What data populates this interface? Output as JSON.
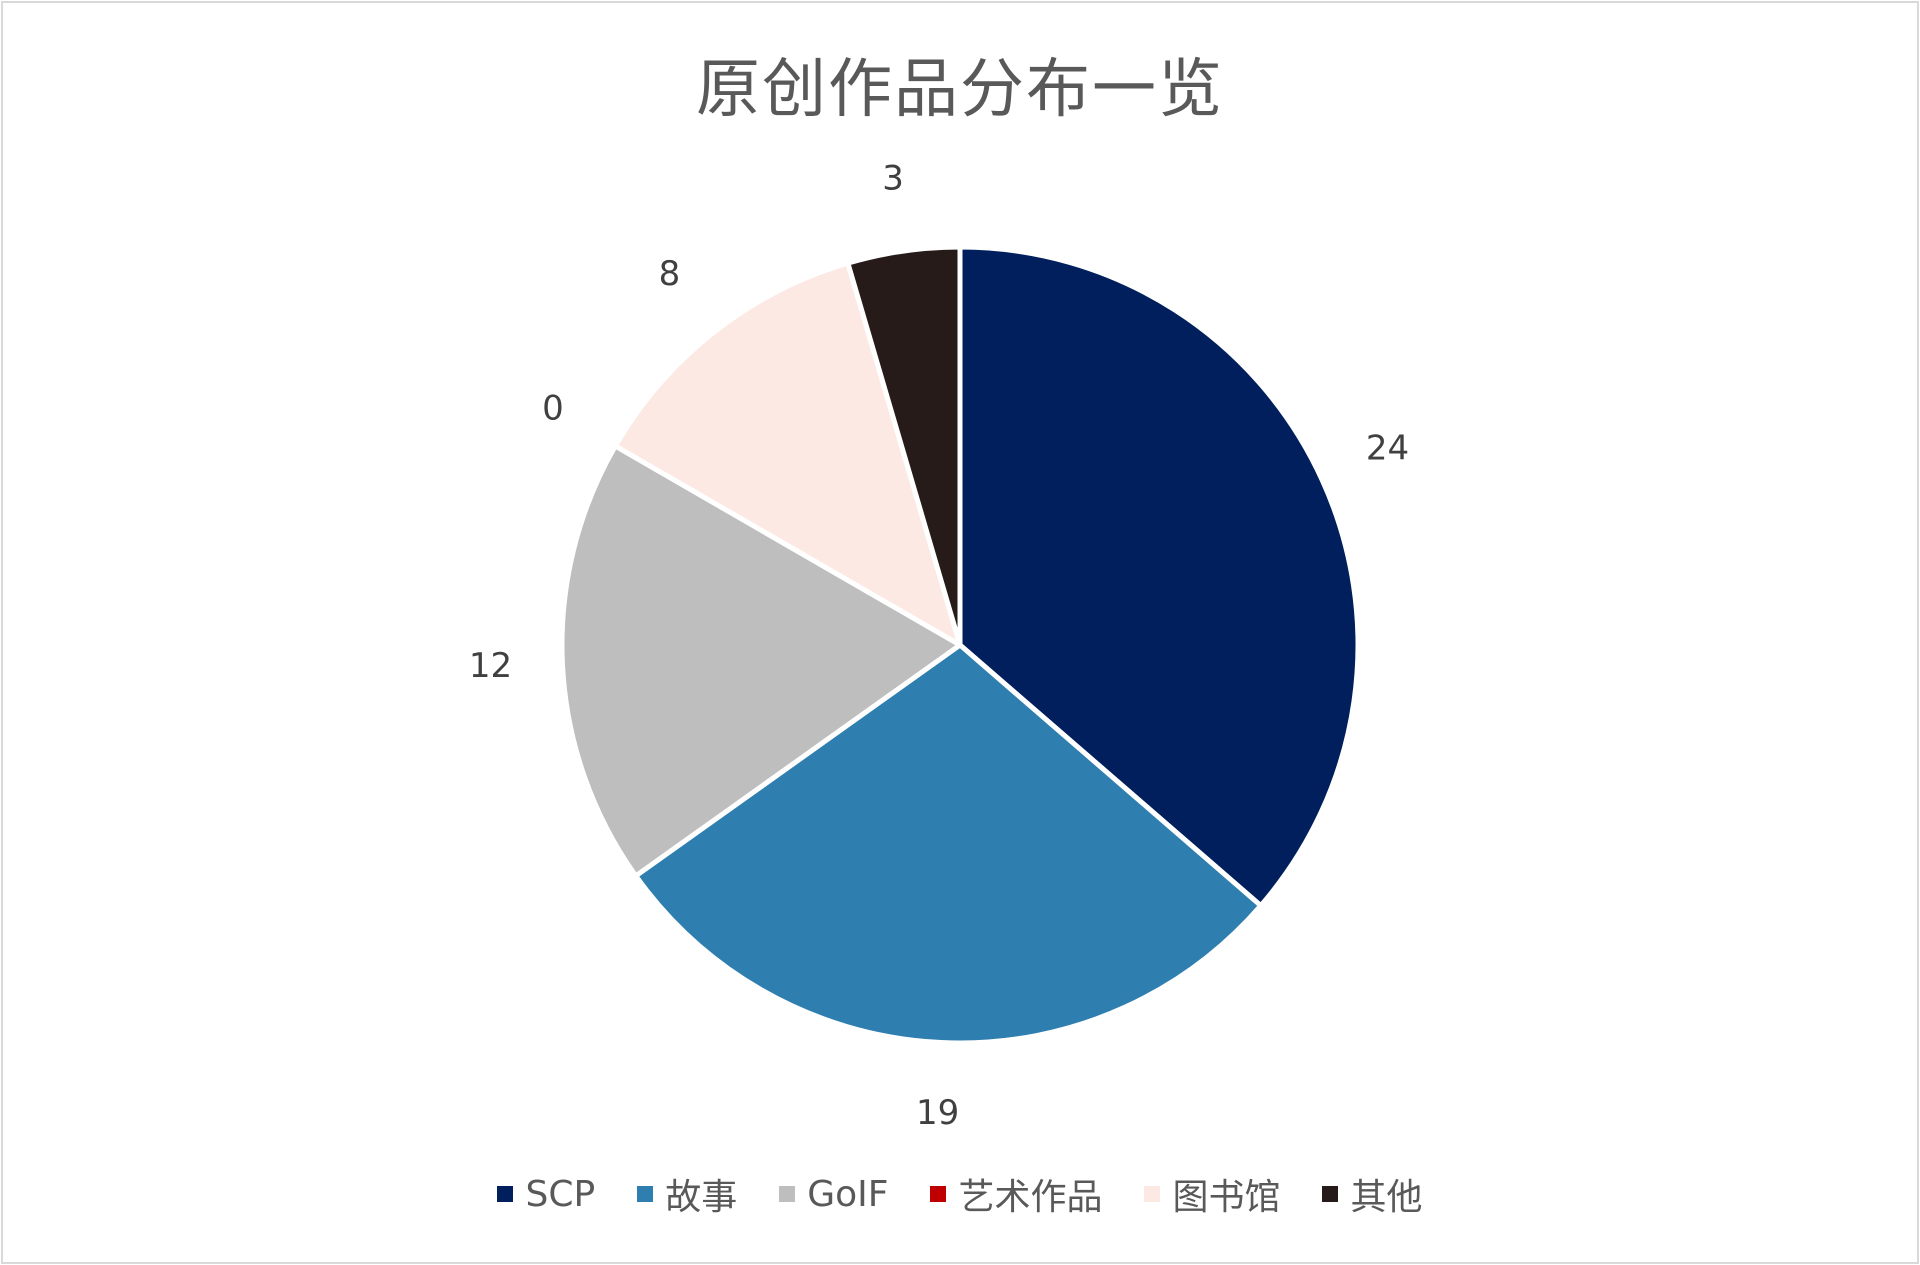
{
  "chart_data": {
    "type": "pie",
    "title": "原创作品分布一览",
    "categories": [
      "SCP",
      "故事",
      "GoIF",
      "艺术作品",
      "图书馆",
      "其他"
    ],
    "values": [
      24,
      19,
      12,
      0,
      8,
      3
    ],
    "colors": [
      "#001f5c",
      "#2e7eb0",
      "#bdbebd",
      "#c00000",
      "#fde9e3",
      "#261b18"
    ],
    "start_angle_deg": 0,
    "direction": "clockwise",
    "data_labels": true,
    "legend_position": "bottom"
  }
}
